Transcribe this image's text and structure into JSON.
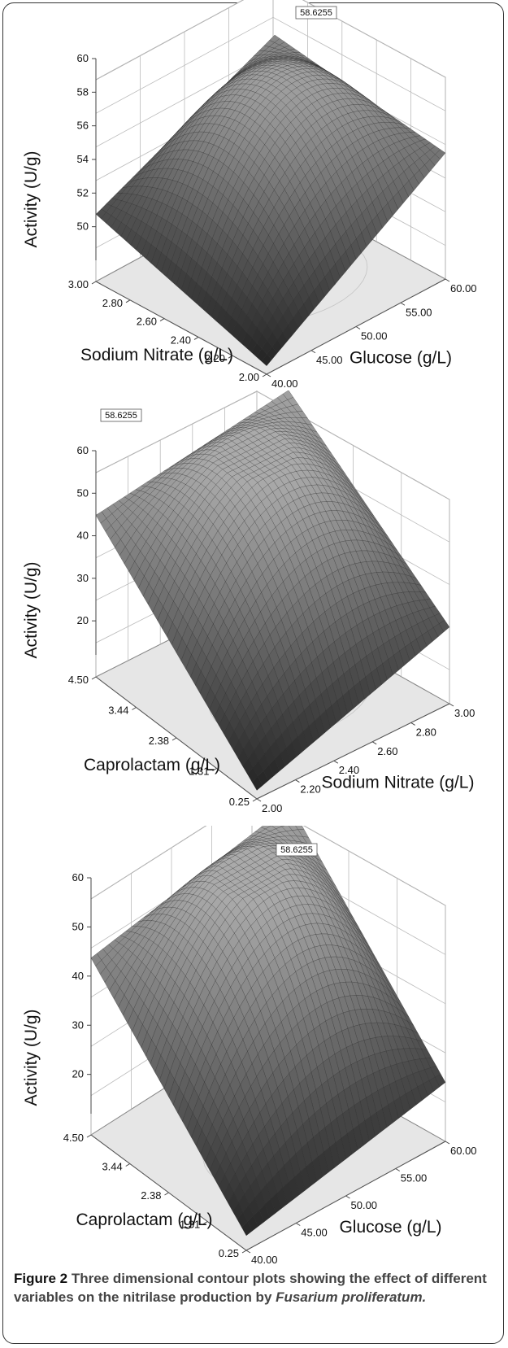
{
  "chart_data": [
    {
      "type": "surface",
      "z_label": "Activity (U/g)",
      "x_label": "Glucose (g/L)",
      "y_label": "Sodium Nitrate (g/L)",
      "z_ticks": [
        "50",
        "52",
        "54",
        "56",
        "58",
        "60"
      ],
      "x_ticks": [
        "40.00",
        "45.00",
        "50.00",
        "55.00",
        "60.00"
      ],
      "y_ticks": [
        "2.00",
        "2.20",
        "2.40",
        "2.60",
        "2.80",
        "3.00"
      ],
      "zlim": [
        48,
        60
      ],
      "peak_label": "58.6255",
      "corner_values": {
        "y_max_x_min": 52.0,
        "y_max_x_max": 57.0,
        "y_min_x_min": 48.5,
        "y_min_x_max": 55.5
      }
    },
    {
      "type": "surface",
      "z_label": "Activity (U/g)",
      "x_label": "Sodium Nitrate (g/L)",
      "y_label": "Caprolactam (g/L)",
      "z_ticks": [
        "20",
        "30",
        "40",
        "50",
        "60"
      ],
      "x_ticks": [
        "2.00",
        "2.20",
        "2.40",
        "2.60",
        "2.80",
        "3.00"
      ],
      "y_ticks": [
        "0.25",
        "1.31",
        "2.38",
        "3.44",
        "4.50"
      ],
      "zlim": [
        12,
        60
      ],
      "peak_label": "58.6255",
      "corner_values": {
        "y_max_x_min": 50.0,
        "y_max_x_max": 57.0,
        "y_min_x_min": 14.0,
        "y_min_x_max": 30.0
      }
    },
    {
      "type": "surface",
      "z_label": "Activity (U/g)",
      "x_label": "Glucose (g/L)",
      "y_label": "Caprolactam (g/L)",
      "z_ticks": [
        "20",
        "30",
        "40",
        "50",
        "60"
      ],
      "x_ticks": [
        "40.00",
        "45.00",
        "50.00",
        "55.00",
        "60.00"
      ],
      "y_ticks": [
        "0.25",
        "1.31",
        "2.38",
        "3.44",
        "4.50"
      ],
      "zlim": [
        12,
        60
      ],
      "peak_label": "58.6255",
      "corner_values": {
        "y_max_x_min": 48.0,
        "y_max_x_max": 57.0,
        "y_min_x_min": 15.0,
        "y_min_x_max": 24.0
      }
    }
  ],
  "caption": {
    "label": "Figure 2",
    "text": "Three dimensional contour plots showing the effect of different variables on the nitrilase production by",
    "organism": "Fusarium proliferatum."
  }
}
